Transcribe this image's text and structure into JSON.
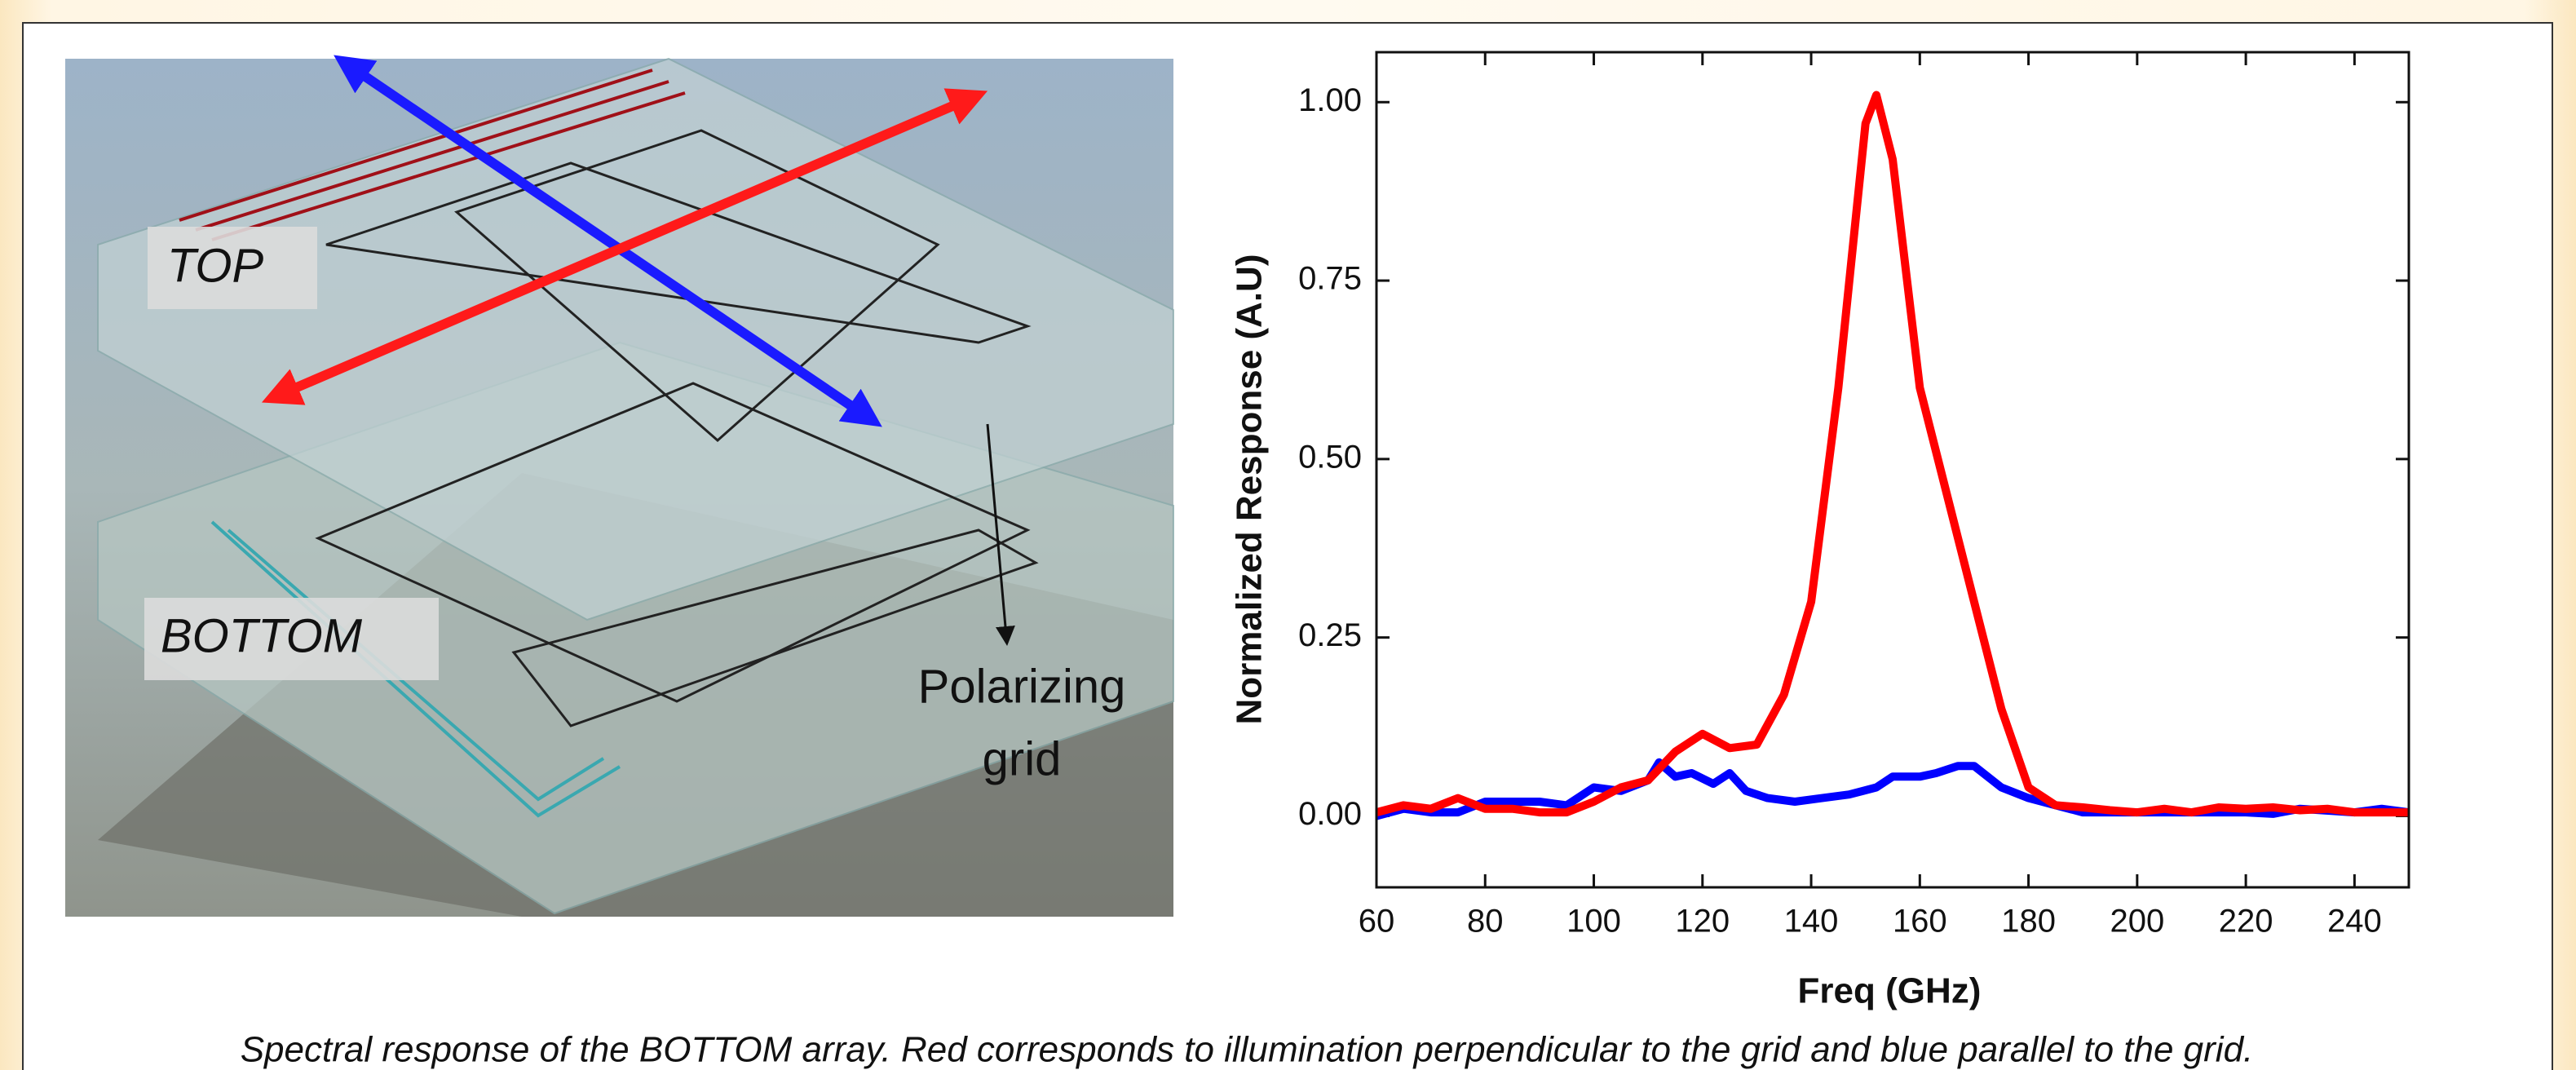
{
  "figure": {
    "top_label": "TOP",
    "bottom_label": "BOTTOM",
    "grid_label": [
      "Polarizing",
      "grid"
    ],
    "caption": "Spectral response of the BOTTOM array. Red corresponds to illumination perpendicular to the grid and blue parallel to the grid."
  },
  "chart_data": {
    "type": "line",
    "x_label": "Freq (GHz)",
    "y_label": "Normalized Response (A.U)",
    "xlim": [
      60,
      250
    ],
    "ylim": [
      -0.1,
      1.07
    ],
    "xticks": [
      60,
      80,
      100,
      120,
      140,
      160,
      180,
      200,
      220,
      240
    ],
    "yticks": [
      {
        "value": 0,
        "label": "0.00"
      },
      {
        "value": 0.25,
        "label": "0.25"
      },
      {
        "value": 0.5,
        "label": "0.50"
      },
      {
        "value": 0.75,
        "label": "0.75"
      },
      {
        "value": 1.0,
        "label": "1.00"
      }
    ],
    "series": [
      {
        "color": "#0000ff",
        "x": [
          60,
          65,
          70,
          75,
          80,
          85,
          90,
          95,
          100,
          105,
          110,
          112,
          115,
          118,
          122,
          125,
          128,
          132,
          137,
          142,
          147,
          152,
          155,
          160,
          163,
          167,
          170,
          175,
          180,
          185,
          190,
          195,
          200,
          210,
          220,
          225,
          230,
          240,
          245,
          250
        ],
        "values": [
          0,
          0.01,
          0.005,
          0.005,
          0.02,
          0.02,
          0.02,
          0.015,
          0.04,
          0.035,
          0.05,
          0.075,
          0.055,
          0.06,
          0.045,
          0.06,
          0.035,
          0.025,
          0.02,
          0.025,
          0.03,
          0.04,
          0.055,
          0.055,
          0.06,
          0.07,
          0.07,
          0.04,
          0.025,
          0.015,
          0.005,
          0.005,
          0.005,
          0.005,
          0.005,
          0.003,
          0.01,
          0.005,
          0.01,
          0.005
        ]
      },
      {
        "color": "#ff0000",
        "x": [
          60,
          65,
          70,
          75,
          80,
          85,
          90,
          95,
          100,
          105,
          110,
          115,
          120,
          125,
          130,
          135,
          140,
          145,
          150,
          152,
          155,
          160,
          165,
          170,
          175,
          180,
          185,
          190,
          195,
          200,
          205,
          210,
          215,
          220,
          225,
          230,
          235,
          240,
          245,
          250
        ],
        "values": [
          0.005,
          0.015,
          0.01,
          0.025,
          0.01,
          0.01,
          0.005,
          0.005,
          0.02,
          0.04,
          0.05,
          0.09,
          0.115,
          0.095,
          0.1,
          0.17,
          0.3,
          0.6,
          0.97,
          1.01,
          0.92,
          0.6,
          0.45,
          0.3,
          0.15,
          0.04,
          0.015,
          0.012,
          0.008,
          0.005,
          0.01,
          0.005,
          0.012,
          0.01,
          0.012,
          0.008,
          0.01,
          0.005,
          0.005,
          0.005
        ]
      }
    ]
  }
}
